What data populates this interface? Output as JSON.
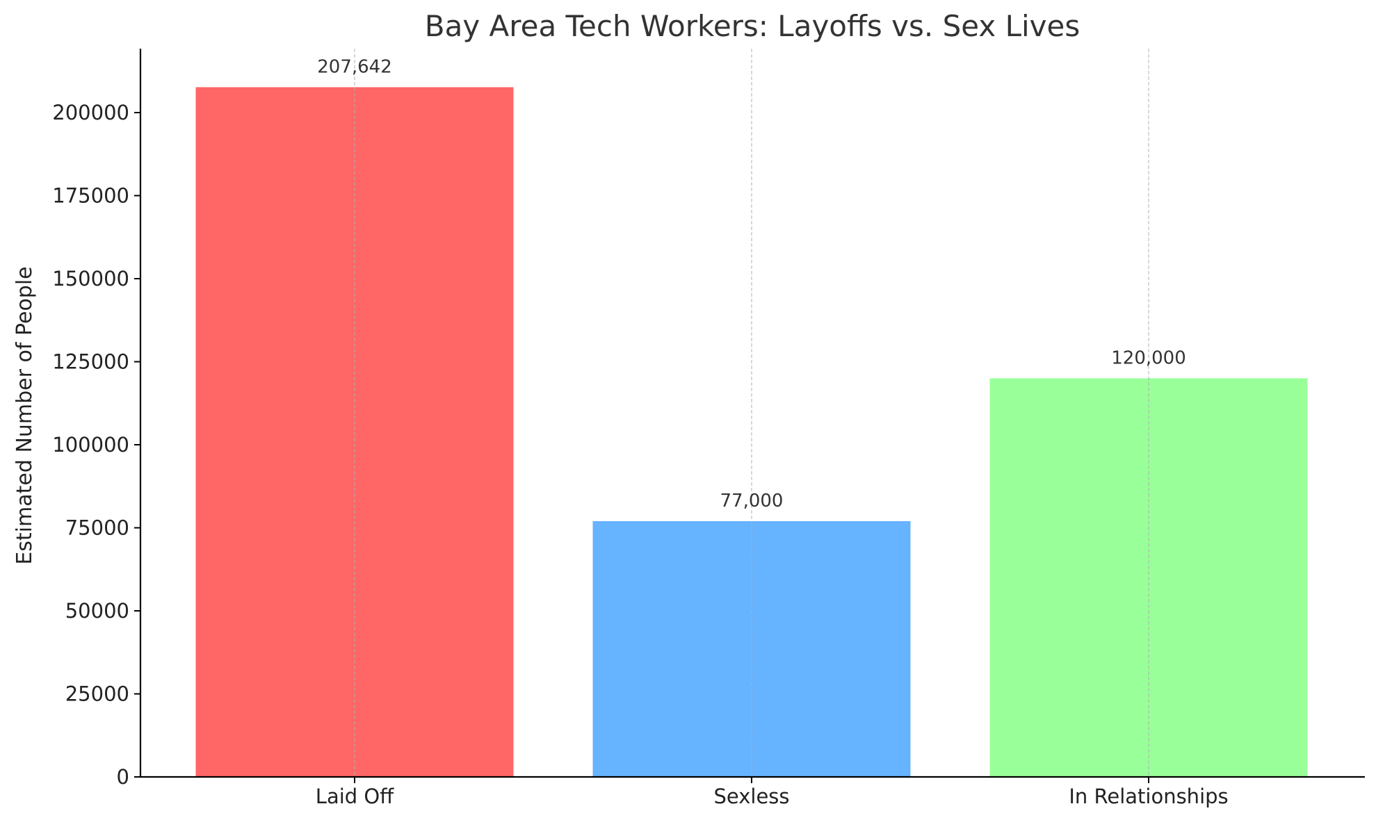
{
  "chart_data": {
    "type": "bar",
    "title": "Bay Area Tech Workers: Layoffs vs. Sex Lives",
    "xlabel": "",
    "ylabel": "Estimated Number of People",
    "categories": [
      "Laid Off",
      "Sexless",
      "In Relationships"
    ],
    "values": [
      207642,
      77000,
      120000
    ],
    "data_labels": [
      "207,642",
      "77,000",
      "120,000"
    ],
    "colors": [
      "#ff6666",
      "#66b3ff",
      "#99ff99"
    ],
    "ylim": [
      0,
      218000
    ],
    "yticks": [
      0,
      25000,
      50000,
      75000,
      100000,
      125000,
      150000,
      175000,
      200000
    ],
    "ytick_labels": [
      "0",
      "25000",
      "50000",
      "75000",
      "100000",
      "125000",
      "150000",
      "175000",
      "200000"
    ],
    "grid": "x-axis dashed",
    "legend": "none"
  }
}
